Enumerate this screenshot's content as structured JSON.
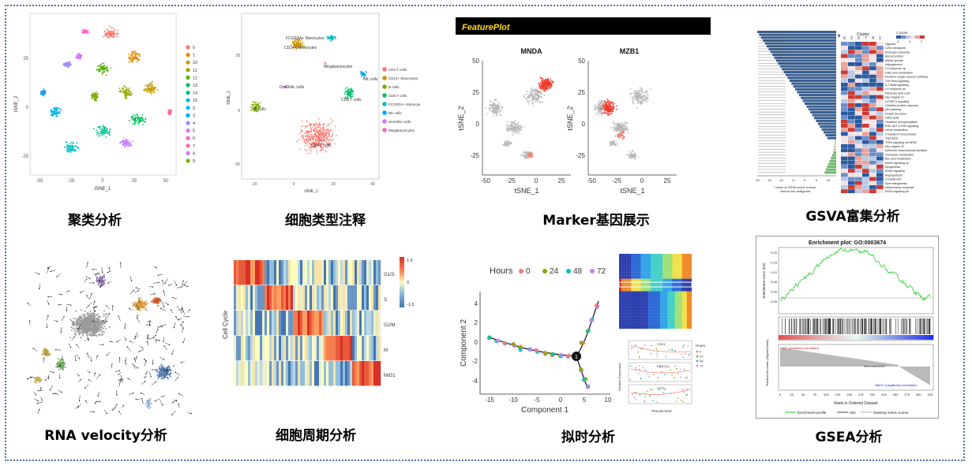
{
  "panels": {
    "p1": {
      "caption": "聚类分析",
      "xlabel": "tSNE_1",
      "ylabel": "tSNE_2",
      "yticks": [
        "25",
        "0",
        "-25"
      ],
      "xticks": [
        "-50",
        "-25",
        "0",
        "25",
        "50"
      ],
      "legend": [
        "0",
        "1",
        "10",
        "11",
        "12",
        "13",
        "14",
        "15",
        "2",
        "3",
        "4",
        "5",
        "6",
        "7",
        "8",
        "9"
      ],
      "colors": [
        "#f8766d",
        "#e38900",
        "#c49a00",
        "#99a800",
        "#53b400",
        "#00bc56",
        "#00c094",
        "#00bfc4",
        "#00b6eb",
        "#06a4ff",
        "#a58aff",
        "#df70f8",
        "#fb61d7",
        "#ff66a8",
        "#c77cff",
        "#7cae00"
      ]
    },
    "p2": {
      "caption": "细胞类型注释",
      "xlabel": "tSNE_1",
      "ylabel": "tSNE_2",
      "yticks": [
        "20",
        "0",
        "-20"
      ],
      "xticks": [
        "-20",
        "0",
        "20",
        "40"
      ],
      "legend": [
        "CD4 T cells",
        "CD14+ Monocytes",
        "B cells",
        "CD8 T cells",
        "FCGR3A+ Monocytes",
        "NK cells",
        "Dendritic cells",
        "Megakaryocytes"
      ],
      "labels": {
        "fcgr3a": "FCGR3A+ Monocytes",
        "cd14": "CD14+ Monocytes",
        "mega": "Megakaryocytes",
        "nk": "NK cells",
        "dc": "Dendritic cells",
        "cd8": "CD8 T cells",
        "bcells": "B cells",
        "cd4": "CD4 T cells"
      }
    },
    "p3": {
      "caption": "Marker基因展示",
      "banner": "FeaturePlot",
      "gene1": "MNDA",
      "gene2": "MZB1",
      "xlabel": "tSNE_1",
      "ylabel": "tSNE_2",
      "yticks": [
        "50",
        "25",
        "0",
        "-25"
      ],
      "xticks": [
        "-50",
        "-25",
        "0",
        "25"
      ]
    },
    "p4": {
      "caption": "GSVA富集分析",
      "panel_e": "e",
      "cluster_label": "Cluster:",
      "zscore_label": "z score",
      "zscale": [
        "-2",
        "0",
        "2"
      ],
      "clusters": [
        "6",
        "2",
        "5",
        "7",
        "4",
        "1"
      ],
      "xlabel1": "t value of GSVA score, tumour",
      "xlabel2": "versus non-malignant",
      "xticks": [
        "-20",
        "-15",
        "-10",
        "-5",
        "0",
        "5",
        "10"
      ],
      "heat_rows": [
        "Hypoxia",
        "G2M checkpoint",
        "Androgen response",
        "Apical junction",
        "Mitotic spindle",
        "Adipogenesis",
        "UV response up",
        "Fatty acid metabolism",
        "Reactive oxygen species pathway",
        "TGF beta signaling",
        "IL2 Stat5 signaling",
        "UV response dn",
        "Pancreas beta cells",
        "Myc targets V1",
        "mTORC1 signaling",
        "Unfolded protein response",
        "p53 pathway",
        "Protein secretion",
        "DNA repair",
        "Oxidative phosphorylation",
        "PI3K AKT mTOR signaling",
        "Heme metabolism",
        "Cholesterol homeostasis",
        "Glycolysis",
        "TNFa signaling via NFkB",
        "Myc targets V2",
        "Epithelial mesenchymal transition",
        "Xenobiotic metabolism",
        "Bile acid metabolism",
        "KRAS signaling up",
        "Myogenesis",
        "Notch signaling",
        "Angiogenesis",
        "Complement",
        "Spermatogenesis",
        "Inflammatory response",
        "KRAS signaling dn"
      ]
    },
    "p5": {
      "caption": "RNA velocity分析"
    },
    "p6": {
      "caption": "细胞周期分析",
      "ylabel": "Cell Cycle",
      "phases": [
        "G1/S",
        "S",
        "G2/M",
        "M",
        "M/G1"
      ],
      "scale": [
        "1.5",
        "0",
        "-1.5"
      ]
    },
    "p7": {
      "caption": "拟时分析",
      "legend_title": "Hours",
      "legend": [
        "0",
        "24",
        "48",
        "72"
      ],
      "legend_colors": [
        "#f8766d",
        "#7cae00",
        "#00bfc4",
        "#c77cff"
      ],
      "xlabel": "Component 1",
      "ylabel": "Component 2",
      "xticks": [
        "-15",
        "-10",
        "-5",
        "0",
        "5",
        "10"
      ],
      "yticks": [
        "4",
        "2",
        "0",
        "-2",
        "-4"
      ],
      "branch": "1",
      "mini_ylabel": "Relative Expression",
      "mini_xlabel": "Pseudo-time",
      "mini_legend": "Hours",
      "mini_titles": [
        "CDK1",
        "PRKCQ",
        "ATF3"
      ]
    },
    "p8": {
      "caption": "GSEA分析",
      "title": "Enrichment plot: GO:0003674",
      "ylabel1": "Enrichment score (ES)",
      "ylabel2": "Ranked list metric (Signal2Noise)",
      "yticks": [
        "0.20",
        "0.15",
        "0.10",
        "0.05",
        "0.00",
        "-0.05"
      ],
      "xlabel": "Rank in Ordered Dataset",
      "xticks": [
        "0",
        "25",
        "50",
        "75",
        "100",
        "125",
        "150",
        "175",
        "200",
        "225",
        "250",
        "275",
        "300",
        "325"
      ],
      "pos_label": "'WT' (positively correlated)",
      "neg_label": "'ABCD' (negatively correlated)",
      "zero_label": "Zero cross at 247",
      "legend": [
        "Enrichment profile",
        "Hits",
        "Ranking metric scores"
      ]
    }
  }
}
